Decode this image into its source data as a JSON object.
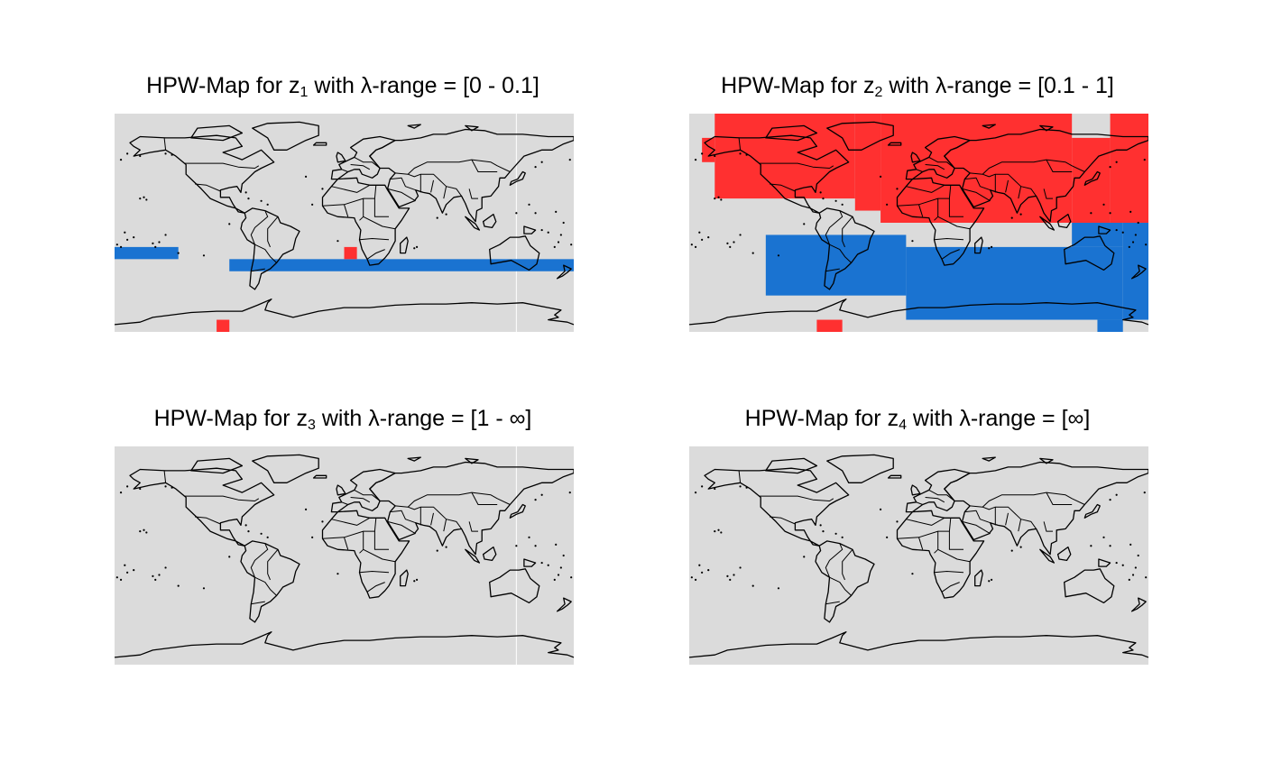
{
  "colors": {
    "background": "#dbdbdb",
    "positive": "#ff3030",
    "negative": "#1a73d1",
    "outline": "#000000",
    "gridline": "#ffffff"
  },
  "panels": [
    {
      "title_prefix": "HPW-Map for z",
      "subscript": "1",
      "title_middle": " with ",
      "lambda": "λ",
      "title_suffix": "-range = [0 - 0.1]",
      "gridline": true,
      "cells": [
        {
          "lon0": -180,
          "lon1": -130,
          "lat0": -30,
          "lat1": -20,
          "sign": "negative"
        },
        {
          "lon0": -90,
          "lon1": 180,
          "lat0": -40,
          "lat1": -30,
          "sign": "negative"
        },
        {
          "lon0": 0,
          "lon1": 10,
          "lat0": -30,
          "lat1": -20,
          "sign": "positive"
        },
        {
          "lon0": -100,
          "lon1": -90,
          "lat0": -90,
          "lat1": -80,
          "sign": "positive"
        }
      ]
    },
    {
      "title_prefix": "HPW-Map for z",
      "subscript": "2",
      "title_middle": " with ",
      "lambda": "λ",
      "title_suffix": "-range = [0.1 - 1]",
      "gridline": false,
      "cells": [
        {
          "lon0": -170,
          "lon1": -160,
          "lat0": 50,
          "lat1": 70,
          "sign": "positive"
        },
        {
          "lon0": -160,
          "lon1": -50,
          "lat0": 20,
          "lat1": 90,
          "sign": "positive"
        },
        {
          "lon0": -50,
          "lon1": -30,
          "lat0": 10,
          "lat1": 90,
          "sign": "positive"
        },
        {
          "lon0": -30,
          "lon1": 120,
          "lat0": 0,
          "lat1": 90,
          "sign": "positive"
        },
        {
          "lon0": 120,
          "lon1": 150,
          "lat0": 0,
          "lat1": 70,
          "sign": "positive"
        },
        {
          "lon0": 150,
          "lon1": 180,
          "lat0": 0,
          "lat1": 90,
          "sign": "positive"
        },
        {
          "lon0": -120,
          "lon1": -10,
          "lat0": -60,
          "lat1": -10,
          "sign": "negative"
        },
        {
          "lon0": -10,
          "lon1": 160,
          "lat0": -80,
          "lat1": -20,
          "sign": "negative"
        },
        {
          "lon0": 160,
          "lon1": 180,
          "lat0": -80,
          "lat1": 0,
          "sign": "negative"
        },
        {
          "lon0": 120,
          "lon1": 160,
          "lat0": -20,
          "lat1": 0,
          "sign": "negative"
        },
        {
          "lon0": 140,
          "lon1": 160,
          "lat0": -90,
          "lat1": -80,
          "sign": "negative"
        },
        {
          "lon0": -80,
          "lon1": -60,
          "lat0": -90,
          "lat1": -80,
          "sign": "positive"
        }
      ]
    },
    {
      "title_prefix": "HPW-Map for z",
      "subscript": "3",
      "title_middle": " with ",
      "lambda": "λ",
      "title_suffix": "-range = [1 - ∞]",
      "gridline": true,
      "cells": []
    },
    {
      "title_prefix": "HPW-Map for z",
      "subscript": "4",
      "title_middle": " with ",
      "lambda": "λ",
      "title_suffix": "-range = [∞]",
      "gridline": false,
      "cells": []
    }
  ]
}
